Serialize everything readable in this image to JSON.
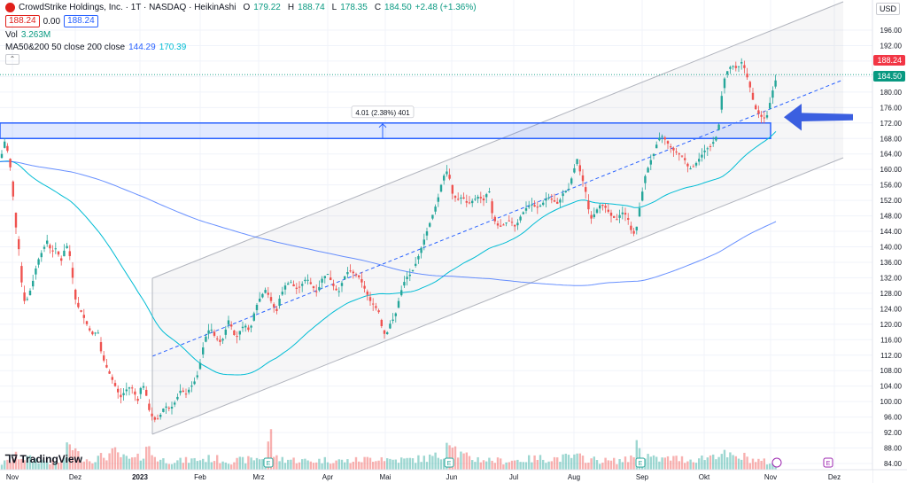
{
  "header": {
    "title": "CrowdStrike Holdings, Inc. · 1T · NASDAQ · HeikinAshi",
    "o_label": "O",
    "o_value": "179.22",
    "h_label": "H",
    "h_value": "188.74",
    "l_label": "L",
    "l_value": "178.35",
    "c_label": "C",
    "c_value": "184.50",
    "change": "+2.48 (+1.36%)",
    "sell": "188.24",
    "spread": "0.00",
    "buy": "188.24",
    "vol_label": "Vol",
    "vol_value": "3.263M",
    "ma_label": "MA50&200 50 close 200 close",
    "ma50": "144.29",
    "ma200": "170.39",
    "currency": "USD",
    "price_tag_red": "188.24",
    "price_tag_green": "184.50",
    "measure_label": "4.01 (2.38%) 401",
    "watermark": "TradingView",
    "earnings_marker": "E"
  },
  "colors": {
    "up": "#26a69a",
    "down": "#ef5350",
    "ma50": "#00bcd4",
    "ma200": "#2962ff",
    "channel": "#b2b5be",
    "zone": "#2962ff"
  },
  "chart_data": {
    "type": "candlestick",
    "ylim": [
      82,
      200
    ],
    "y_ticks": [
      "196.00",
      "192.00",
      "188.00",
      "184.00",
      "180.00",
      "176.00",
      "172.00",
      "168.00",
      "164.00",
      "160.00",
      "156.00",
      "152.00",
      "148.00",
      "144.00",
      "140.00",
      "136.00",
      "132.00",
      "128.00",
      "124.00",
      "120.00",
      "116.00",
      "112.00",
      "108.00",
      "104.00",
      "100.00",
      "96.00",
      "92.00",
      "88.00",
      "84.00"
    ],
    "x_ticks": [
      "Nov",
      "Dez",
      "2023",
      "Feb",
      "Mrz",
      "Apr",
      "Mai",
      "Jun",
      "Jul",
      "Aug",
      "Sep",
      "Okt",
      "Nov",
      "Dez"
    ],
    "close_path": [
      [
        0,
        162
      ],
      [
        6,
        168
      ],
      [
        12,
        160
      ],
      [
        18,
        145
      ],
      [
        22,
        138
      ],
      [
        26,
        126
      ],
      [
        30,
        126
      ],
      [
        36,
        130
      ],
      [
        42,
        136
      ],
      [
        48,
        139
      ],
      [
        54,
        142
      ],
      [
        58,
        138
      ],
      [
        62,
        140
      ],
      [
        66,
        138
      ],
      [
        70,
        136
      ],
      [
        74,
        141
      ],
      [
        78,
        139
      ],
      [
        82,
        132
      ],
      [
        86,
        125
      ],
      [
        90,
        124
      ],
      [
        94,
        122
      ],
      [
        98,
        120
      ],
      [
        102,
        118
      ],
      [
        106,
        117
      ],
      [
        110,
        119
      ],
      [
        114,
        113
      ],
      [
        118,
        110
      ],
      [
        122,
        108
      ],
      [
        126,
        106
      ],
      [
        130,
        104
      ],
      [
        136,
        101
      ],
      [
        142,
        103
      ],
      [
        148,
        104
      ],
      [
        152,
        102
      ],
      [
        156,
        100
      ],
      [
        160,
        105
      ],
      [
        164,
        103
      ],
      [
        168,
        98
      ],
      [
        172,
        96
      ],
      [
        176,
        95
      ],
      [
        180,
        96
      ],
      [
        186,
        99
      ],
      [
        192,
        98
      ],
      [
        198,
        100
      ],
      [
        204,
        103
      ],
      [
        210,
        102
      ],
      [
        216,
        104
      ],
      [
        222,
        106
      ],
      [
        226,
        110
      ],
      [
        230,
        115
      ],
      [
        234,
        118
      ],
      [
        238,
        119
      ],
      [
        242,
        117
      ],
      [
        246,
        116
      ],
      [
        250,
        115
      ],
      [
        254,
        118
      ],
      [
        258,
        121
      ],
      [
        262,
        119
      ],
      [
        266,
        116
      ],
      [
        270,
        118
      ],
      [
        276,
        120
      ],
      [
        282,
        118
      ],
      [
        288,
        124
      ],
      [
        294,
        127
      ],
      [
        300,
        129
      ],
      [
        306,
        126
      ],
      [
        312,
        123
      ],
      [
        316,
        127
      ],
      [
        322,
        130
      ],
      [
        328,
        131
      ],
      [
        334,
        129
      ],
      [
        340,
        130
      ],
      [
        346,
        132
      ],
      [
        352,
        130
      ],
      [
        358,
        128
      ],
      [
        364,
        132
      ],
      [
        370,
        133
      ],
      [
        376,
        130
      ],
      [
        382,
        128
      ],
      [
        388,
        132
      ],
      [
        394,
        134
      ],
      [
        400,
        133
      ],
      [
        406,
        132
      ],
      [
        410,
        130
      ],
      [
        414,
        128
      ],
      [
        418,
        126
      ],
      [
        422,
        125
      ],
      [
        428,
        123
      ],
      [
        432,
        118
      ],
      [
        436,
        117
      ],
      [
        440,
        120
      ],
      [
        446,
        122
      ],
      [
        452,
        128
      ],
      [
        458,
        132
      ],
      [
        464,
        133
      ],
      [
        470,
        136
      ],
      [
        476,
        140
      ],
      [
        482,
        144
      ],
      [
        488,
        148
      ],
      [
        494,
        152
      ],
      [
        500,
        158
      ],
      [
        506,
        160
      ],
      [
        510,
        154
      ],
      [
        516,
        152
      ],
      [
        522,
        153
      ],
      [
        528,
        151
      ],
      [
        534,
        152
      ],
      [
        540,
        153
      ],
      [
        546,
        152
      ],
      [
        552,
        155
      ],
      [
        556,
        148
      ],
      [
        560,
        146
      ],
      [
        564,
        145
      ],
      [
        570,
        146
      ],
      [
        576,
        147
      ],
      [
        582,
        145
      ],
      [
        588,
        148
      ],
      [
        594,
        150
      ],
      [
        600,
        151
      ],
      [
        606,
        150
      ],
      [
        612,
        151
      ],
      [
        618,
        153
      ],
      [
        624,
        152
      ],
      [
        630,
        151
      ],
      [
        636,
        154
      ],
      [
        642,
        155
      ],
      [
        648,
        160
      ],
      [
        652,
        163
      ],
      [
        656,
        158
      ],
      [
        660,
        156
      ],
      [
        664,
        150
      ],
      [
        668,
        147
      ],
      [
        672,
        149
      ],
      [
        678,
        151
      ],
      [
        684,
        150
      ],
      [
        690,
        148
      ],
      [
        696,
        147
      ],
      [
        702,
        149
      ],
      [
        708,
        148
      ],
      [
        714,
        143
      ],
      [
        718,
        144
      ],
      [
        722,
        150
      ],
      [
        728,
        158
      ],
      [
        734,
        162
      ],
      [
        738,
        164
      ],
      [
        742,
        167
      ],
      [
        746,
        169
      ],
      [
        750,
        168
      ],
      [
        756,
        166
      ],
      [
        760,
        165
      ],
      [
        766,
        164
      ],
      [
        772,
        163
      ],
      [
        778,
        160
      ],
      [
        784,
        161
      ],
      [
        790,
        163
      ],
      [
        796,
        165
      ],
      [
        802,
        166
      ],
      [
        808,
        168
      ],
      [
        812,
        172
      ],
      [
        816,
        182
      ],
      [
        820,
        185
      ],
      [
        826,
        187
      ],
      [
        832,
        186
      ],
      [
        838,
        188
      ],
      [
        842,
        185
      ],
      [
        846,
        182
      ],
      [
        850,
        178
      ],
      [
        854,
        175
      ],
      [
        858,
        174
      ],
      [
        862,
        173
      ],
      [
        866,
        174
      ],
      [
        870,
        178
      ],
      [
        874,
        182
      ],
      [
        878,
        184.5
      ]
    ],
    "volume_profile": [
      [
        0,
        4
      ],
      [
        10,
        6
      ],
      [
        20,
        10
      ],
      [
        30,
        8
      ],
      [
        40,
        7
      ],
      [
        50,
        6
      ],
      [
        60,
        5
      ],
      [
        70,
        6
      ],
      [
        80,
        20
      ],
      [
        84,
        14
      ],
      [
        90,
        9
      ],
      [
        100,
        7
      ],
      [
        110,
        8
      ],
      [
        120,
        10
      ],
      [
        130,
        12
      ],
      [
        140,
        8
      ],
      [
        150,
        7
      ],
      [
        160,
        9
      ],
      [
        165,
        18
      ],
      [
        170,
        12
      ],
      [
        180,
        7
      ],
      [
        200,
        6
      ],
      [
        220,
        7
      ],
      [
        240,
        8
      ],
      [
        260,
        6
      ],
      [
        280,
        7
      ],
      [
        300,
        9
      ],
      [
        305,
        28
      ],
      [
        310,
        8
      ],
      [
        330,
        7
      ],
      [
        350,
        6
      ],
      [
        370,
        7
      ],
      [
        390,
        6
      ],
      [
        410,
        7
      ],
      [
        430,
        9
      ],
      [
        440,
        7
      ],
      [
        460,
        7
      ],
      [
        480,
        8
      ],
      [
        500,
        10
      ],
      [
        505,
        22
      ],
      [
        510,
        26
      ],
      [
        515,
        12
      ],
      [
        530,
        8
      ],
      [
        550,
        7
      ],
      [
        570,
        6
      ],
      [
        590,
        7
      ],
      [
        610,
        8
      ],
      [
        630,
        8
      ],
      [
        650,
        9
      ],
      [
        670,
        7
      ],
      [
        690,
        6
      ],
      [
        710,
        7
      ],
      [
        720,
        18
      ],
      [
        725,
        12
      ],
      [
        740,
        7
      ],
      [
        760,
        8
      ],
      [
        780,
        7
      ],
      [
        800,
        9
      ],
      [
        810,
        12
      ],
      [
        820,
        10
      ],
      [
        830,
        8
      ],
      [
        840,
        9
      ],
      [
        850,
        7
      ],
      [
        860,
        6
      ],
      [
        870,
        5
      ]
    ]
  }
}
